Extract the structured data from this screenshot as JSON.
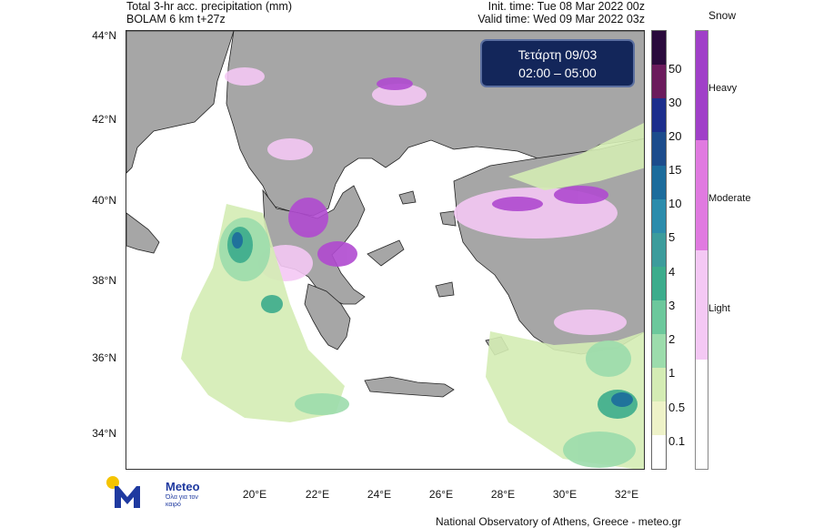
{
  "header": {
    "title_line1": "Total 3-hr acc. precipitation (mm)",
    "title_line2": "BOLAM 6 km t+27z",
    "init_time": "Init. time: Tue 08 Mar 2022 00z",
    "valid_time": "Valid time: Wed 09 Mar 2022 03z"
  },
  "time_box": {
    "day": "Τετάρτη 09/03",
    "interval": "02:00 – 05:00"
  },
  "axes": {
    "lat_labels": [
      "44°N",
      "42°N",
      "40°N",
      "38°N",
      "36°N",
      "34°N"
    ],
    "lon_labels": [
      "20°E",
      "22°E",
      "24°E",
      "26°E",
      "28°E",
      "30°E",
      "32°E"
    ]
  },
  "rain_scale": {
    "labels": [
      "50",
      "30",
      "20",
      "15",
      "10",
      "5",
      "4",
      "3",
      "2",
      "1",
      "0.5",
      "0.1"
    ],
    "colors": [
      "#2a0a3c",
      "#6b1b5c",
      "#1c2e8c",
      "#1c4c8c",
      "#1c6c9c",
      "#2c8cac",
      "#3c9c9c",
      "#3cac8c",
      "#6cc89c",
      "#9cdcac",
      "#d4ecb4",
      "#eef2c8",
      "#ffffff"
    ]
  },
  "snow_scale": {
    "title": "Snow",
    "labels": [
      "Heavy",
      "Moderate",
      "Light"
    ],
    "colors": [
      "#a040c8",
      "#e07ae0",
      "#f4c8f4",
      "#ffffff"
    ]
  },
  "colors": {
    "land": "#a6a6a6",
    "sea": "#ffffff",
    "time_box_bg": "#13265a"
  },
  "logo": {
    "name": "Meteo",
    "tagline": "Όλα για τον καιρό"
  },
  "footer": "National Observatory of Athens, Greece - meteo.gr"
}
